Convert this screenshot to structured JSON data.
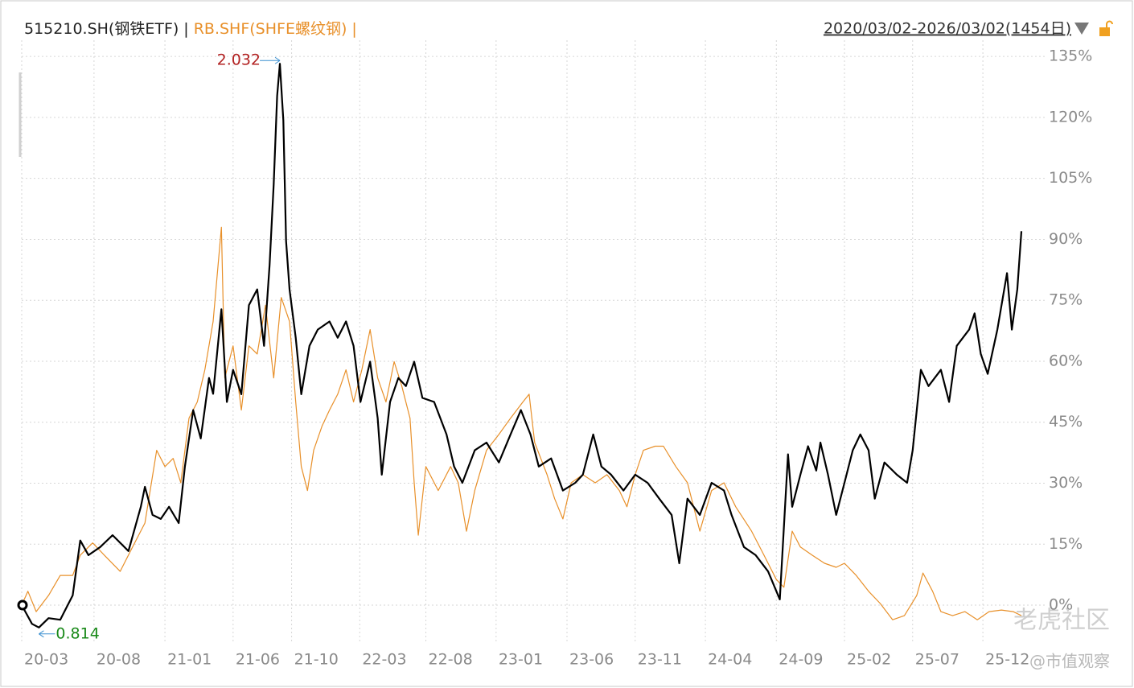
{
  "chart_data": {
    "type": "line",
    "separator": "|",
    "date_range": "2020/03/02-2026/03/02(1454日)",
    "watermark": "老虎社区",
    "credit": "@市值观察",
    "annotations": [
      "2.032",
      "0.814"
    ],
    "grid": true,
    "xlim": [
      0,
      1487
    ],
    "ylim": [
      -9.5,
      138
    ],
    "xticks": [
      {
        "value": 0,
        "label": "20-03"
      },
      {
        "value": 105,
        "label": "20-08"
      },
      {
        "value": 208,
        "label": "21-01"
      },
      {
        "value": 307,
        "label": "21-06"
      },
      {
        "value": 392,
        "label": "21-10"
      },
      {
        "value": 491,
        "label": "22-03"
      },
      {
        "value": 587,
        "label": "22-08"
      },
      {
        "value": 689,
        "label": "23-01"
      },
      {
        "value": 792,
        "label": "23-06"
      },
      {
        "value": 891,
        "label": "23-11"
      },
      {
        "value": 993,
        "label": "24-04"
      },
      {
        "value": 1096,
        "label": "24-09"
      },
      {
        "value": 1195,
        "label": "25-02"
      },
      {
        "value": 1294,
        "label": "25-07"
      },
      {
        "value": 1396,
        "label": "25-12"
      }
    ],
    "yticks": [
      {
        "value": 0,
        "label": "0%"
      },
      {
        "value": 15,
        "label": "15%"
      },
      {
        "value": 30,
        "label": "30%"
      },
      {
        "value": 45,
        "label": "45%"
      },
      {
        "value": 60,
        "label": "60%"
      },
      {
        "value": 75,
        "label": "75%"
      },
      {
        "value": 90,
        "label": "90%"
      },
      {
        "value": 105,
        "label": "105%"
      },
      {
        "value": 120,
        "label": "120%"
      },
      {
        "value": 135,
        "label": "135%"
      }
    ],
    "series": [
      {
        "name": "515210.SH(钢铁ETF)",
        "color": "#000000",
        "x": [
          0,
          15,
          25,
          39,
          56,
          74,
          85,
          97,
          114,
          132,
          155,
          173,
          179,
          190,
          202,
          214,
          228,
          237,
          249,
          260,
          272,
          278,
          290,
          298,
          307,
          319,
          330,
          342,
          352,
          360,
          366,
          371,
          375,
          380,
          384,
          389,
          398,
          406,
          418,
          430,
          447,
          459,
          471,
          482,
          492,
          506,
          517,
          523,
          535,
          547,
          558,
          570,
          582,
          599,
          617,
          628,
          640,
          658,
          675,
          693,
          710,
          725,
          739,
          751,
          769,
          786,
          804,
          815,
          830,
          842,
          856,
          874,
          891,
          909,
          926,
          944,
          955,
          967,
          985,
          1002,
          1020,
          1031,
          1049,
          1066,
          1084,
          1101,
          1113,
          1119,
          1131,
          1142,
          1154,
          1160,
          1171,
          1183,
          1195,
          1207,
          1218,
          1230,
          1239,
          1253,
          1271,
          1286,
          1294,
          1306,
          1317,
          1335,
          1347,
          1358,
          1376,
          1384,
          1393,
          1403,
          1417,
          1431,
          1438,
          1446,
          1452
        ],
        "values": [
          0,
          -4.6,
          -5.5,
          -3.2,
          -3.6,
          2.4,
          15.9,
          12.3,
          14.3,
          17.2,
          13.3,
          24.2,
          29.1,
          22.2,
          21.2,
          24.2,
          20.2,
          34.1,
          48,
          41,
          55.9,
          52,
          72.8,
          50,
          57.9,
          51.9,
          73.8,
          77.7,
          63.8,
          83.7,
          103.5,
          125.3,
          133.2,
          119.3,
          89.6,
          77.7,
          65.8,
          51.9,
          63.8,
          67.8,
          69.8,
          65.8,
          69.8,
          63.8,
          50,
          59.9,
          46,
          32.1,
          50,
          55.9,
          53.9,
          59.9,
          51,
          50,
          42,
          34.1,
          30.1,
          38.1,
          40,
          35.1,
          42,
          48,
          42,
          34.1,
          36.1,
          28.2,
          30.1,
          32.1,
          42,
          34.1,
          32.1,
          28.2,
          32.1,
          30.1,
          26.2,
          22.2,
          10.3,
          26.2,
          22.2,
          30.1,
          28.2,
          22.2,
          14.3,
          12.3,
          8.3,
          1.4,
          37.1,
          24.2,
          32.1,
          39.1,
          33.1,
          40,
          32.1,
          22.2,
          30.1,
          38.1,
          42,
          38.1,
          26.2,
          35.1,
          32.1,
          30.1,
          38.1,
          57.9,
          53.9,
          57.9,
          50,
          63.8,
          67.8,
          71.8,
          61.8,
          56.9,
          67.8,
          81.7,
          67.8,
          77.7,
          92
        ]
      },
      {
        "name": "RB.SHF(SHFE螺纹钢)",
        "color": "#e8902a",
        "x": [
          0,
          9,
          21,
          39,
          56,
          74,
          85,
          103,
          120,
          143,
          161,
          179,
          196,
          208,
          220,
          231,
          243,
          255,
          266,
          278,
          290,
          295,
          307,
          319,
          330,
          342,
          354,
          366,
          377,
          389,
          398,
          406,
          415,
          424,
          436,
          447,
          459,
          471,
          482,
          494,
          506,
          517,
          529,
          541,
          552,
          564,
          570,
          576,
          587,
          605,
          623,
          634,
          646,
          658,
          675,
          693,
          710,
          728,
          737,
          745,
          763,
          774,
          786,
          798,
          815,
          833,
          850,
          868,
          879,
          891,
          903,
          920,
          932,
          950,
          967,
          985,
          1002,
          1020,
          1037,
          1060,
          1078,
          1096,
          1107,
          1119,
          1131,
          1148,
          1166,
          1183,
          1195,
          1212,
          1230,
          1247,
          1265,
          1282,
          1300,
          1309,
          1323,
          1335,
          1352,
          1370,
          1388,
          1405,
          1423,
          1440,
          1452
        ],
        "values": [
          0,
          3.4,
          -1.6,
          2.4,
          7.3,
          7.3,
          12.3,
          15.3,
          12.3,
          8.3,
          14.3,
          20.2,
          38.1,
          34.1,
          36.1,
          30.1,
          46,
          50,
          57.9,
          69.8,
          93,
          55.9,
          63.8,
          48,
          63.8,
          61.8,
          73.8,
          55.9,
          75.7,
          69.8,
          50,
          34.1,
          28.2,
          38.1,
          44,
          48,
          51.9,
          57.9,
          50,
          57.9,
          67.8,
          55.9,
          50,
          59.9,
          53.9,
          46,
          30.1,
          17.2,
          34.1,
          28.2,
          34.1,
          30.1,
          18.2,
          28.2,
          38.1,
          42,
          46,
          50,
          51.9,
          40,
          32.1,
          26.2,
          21.2,
          30.1,
          32.1,
          30.1,
          32.1,
          28.2,
          24.2,
          32.1,
          38.1,
          39.1,
          39.1,
          34.1,
          30.1,
          18.2,
          28.2,
          30.1,
          24.2,
          18.2,
          12.3,
          6.3,
          4.4,
          18.2,
          14.3,
          12.3,
          10.3,
          9.3,
          10.3,
          7.3,
          3.4,
          0.4,
          -3.6,
          -2.6,
          2.4,
          7.9,
          3.4,
          -1.6,
          -2.6,
          -1.6,
          -3.6,
          -1.6,
          -1.2,
          -1.6,
          -2.6
        ]
      }
    ]
  }
}
